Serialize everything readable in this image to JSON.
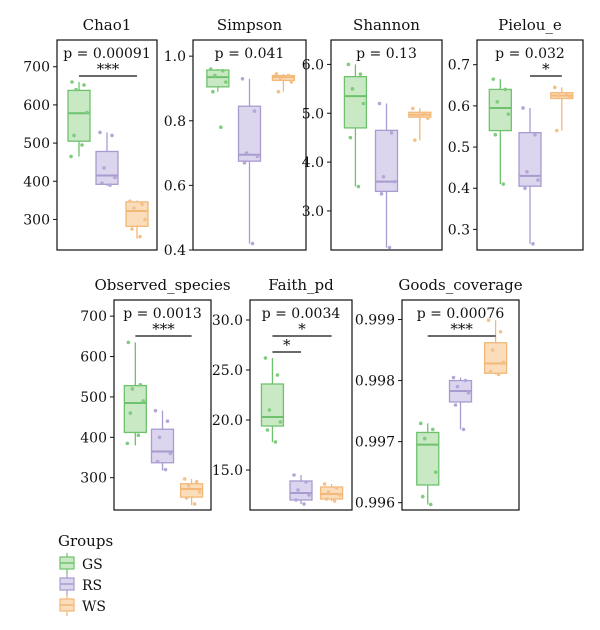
{
  "chart_data": [
    {
      "type": "box",
      "title": "Chao1",
      "pvalue": "p = 0.00091",
      "ylim": [
        220,
        770
      ],
      "yticks": [
        300,
        400,
        500,
        600,
        700
      ],
      "groups": [
        "GS",
        "RS",
        "WS"
      ],
      "boxes": [
        {
          "group": "GS",
          "min": 465,
          "q1": 505,
          "median": 578,
          "q3": 638,
          "max": 660,
          "points": [
            660,
            652,
            640,
            580,
            520,
            495,
            465
          ]
        },
        {
          "group": "RS",
          "min": 388,
          "q1": 392,
          "median": 415,
          "q3": 478,
          "max": 528,
          "points": [
            528,
            520,
            435,
            410,
            395,
            390
          ]
        },
        {
          "group": "WS",
          "min": 250,
          "q1": 282,
          "median": 322,
          "q3": 346,
          "max": 350,
          "points": [
            348,
            340,
            330,
            300,
            275,
            255
          ]
        }
      ],
      "sig": [
        {
          "from": 0,
          "to": 2,
          "label": "***"
        }
      ]
    },
    {
      "type": "box",
      "title": "Simpson",
      "pvalue": "p = 0.041",
      "ylim": [
        0.4,
        1.05
      ],
      "yticks": [
        0.4,
        0.6,
        0.8,
        1.0
      ],
      "groups": [
        "GS",
        "RS",
        "WS"
      ],
      "boxes": [
        {
          "group": "GS",
          "min": 0.89,
          "q1": 0.905,
          "median": 0.935,
          "q3": 0.957,
          "max": 0.96,
          "points": [
            0.96,
            0.955,
            0.94,
            0.92,
            0.89,
            0.78
          ]
        },
        {
          "group": "RS",
          "min": 0.42,
          "q1": 0.675,
          "median": 0.695,
          "q3": 0.845,
          "max": 0.93,
          "points": [
            0.93,
            0.83,
            0.7,
            0.69,
            0.67,
            0.42
          ]
        },
        {
          "group": "WS",
          "min": 0.89,
          "q1": 0.925,
          "median": 0.935,
          "q3": 0.94,
          "max": 0.945,
          "points": [
            0.945,
            0.94,
            0.93,
            0.92,
            0.89
          ]
        }
      ],
      "sig": []
    },
    {
      "type": "box",
      "title": "Shannon",
      "pvalue": "p = 0.13",
      "ylim": [
        2.2,
        6.5
      ],
      "yticks": [
        3,
        4,
        5,
        6
      ],
      "groups": [
        "GS",
        "RS",
        "WS"
      ],
      "boxes": [
        {
          "group": "GS",
          "min": 3.5,
          "q1": 4.7,
          "median": 5.35,
          "q3": 5.75,
          "max": 6.0,
          "points": [
            6.0,
            5.8,
            5.5,
            5.2,
            4.5,
            3.5
          ]
        },
        {
          "group": "RS",
          "min": 2.25,
          "q1": 3.4,
          "median": 3.6,
          "q3": 4.65,
          "max": 5.2,
          "points": [
            5.2,
            4.6,
            3.7,
            3.6,
            3.35,
            2.25
          ]
        },
        {
          "group": "WS",
          "min": 4.45,
          "q1": 4.92,
          "median": 4.97,
          "q3": 5.02,
          "max": 5.1,
          "points": [
            5.1,
            5.0,
            4.95,
            4.9,
            4.45
          ]
        }
      ],
      "sig": []
    },
    {
      "type": "box",
      "title": "Pielou_e",
      "pvalue": "p = 0.032",
      "ylim": [
        0.25,
        0.76
      ],
      "yticks": [
        0.3,
        0.4,
        0.5,
        0.6,
        0.7
      ],
      "groups": [
        "GS",
        "RS",
        "WS"
      ],
      "boxes": [
        {
          "group": "GS",
          "min": 0.41,
          "q1": 0.54,
          "median": 0.595,
          "q3": 0.64,
          "max": 0.665,
          "points": [
            0.665,
            0.64,
            0.61,
            0.58,
            0.53,
            0.41
          ]
        },
        {
          "group": "RS",
          "min": 0.265,
          "q1": 0.405,
          "median": 0.43,
          "q3": 0.535,
          "max": 0.595,
          "points": [
            0.595,
            0.53,
            0.44,
            0.42,
            0.4,
            0.265
          ]
        },
        {
          "group": "WS",
          "min": 0.54,
          "q1": 0.618,
          "median": 0.625,
          "q3": 0.632,
          "max": 0.645,
          "points": [
            0.645,
            0.63,
            0.625,
            0.62,
            0.54
          ]
        }
      ],
      "sig": [
        {
          "from": 1,
          "to": 2,
          "label": "*"
        }
      ]
    },
    {
      "type": "box",
      "title": "Observed_species",
      "pvalue": "p = 0.0013",
      "ylim": [
        220,
        740
      ],
      "yticks": [
        300,
        400,
        500,
        600,
        700
      ],
      "groups": [
        "GS",
        "RS",
        "WS"
      ],
      "boxes": [
        {
          "group": "GS",
          "min": 380,
          "q1": 412,
          "median": 485,
          "q3": 528,
          "max": 635,
          "points": [
            635,
            530,
            520,
            490,
            460,
            405,
            385
          ]
        },
        {
          "group": "RS",
          "min": 318,
          "q1": 337,
          "median": 365,
          "q3": 420,
          "max": 466,
          "points": [
            466,
            440,
            400,
            360,
            340,
            320
          ]
        },
        {
          "group": "WS",
          "min": 232,
          "q1": 252,
          "median": 272,
          "q3": 285,
          "max": 297,
          "points": [
            297,
            290,
            280,
            265,
            250,
            235
          ]
        }
      ],
      "sig": [
        {
          "from": 0,
          "to": 2,
          "label": "***"
        }
      ]
    },
    {
      "type": "box",
      "title": "Faith_pd",
      "pvalue": "p = 0.0034",
      "ylim": [
        11,
        32
      ],
      "yticks": [
        15,
        20,
        25,
        30
      ],
      "groups": [
        "GS",
        "RS",
        "WS"
      ],
      "boxes": [
        {
          "group": "GS",
          "min": 17.8,
          "q1": 19.4,
          "median": 20.3,
          "q3": 23.6,
          "max": 26.2,
          "points": [
            26.2,
            24.5,
            21.0,
            19.8,
            19.0,
            17.8
          ]
        },
        {
          "group": "RS",
          "min": 11.6,
          "q1": 12.0,
          "median": 12.7,
          "q3": 13.9,
          "max": 14.5,
          "points": [
            14.5,
            13.8,
            13.0,
            12.5,
            12.0,
            11.6
          ]
        },
        {
          "group": "WS",
          "min": 11.9,
          "q1": 12.1,
          "median": 12.6,
          "q3": 13.3,
          "max": 13.6,
          "points": [
            13.6,
            13.2,
            12.8,
            12.5,
            12.1,
            11.9
          ]
        }
      ],
      "sig": [
        {
          "from": 0,
          "to": 1,
          "label": "*"
        },
        {
          "from": 0,
          "to": 2,
          "label": "*"
        }
      ]
    },
    {
      "type": "box",
      "title": "Goods_coverage",
      "pvalue": "p = 0.00076",
      "ylim": [
        0.99588,
        0.99932
      ],
      "yticks": [
        0.996,
        0.997,
        0.998,
        0.999
      ],
      "groups": [
        "GS",
        "RS",
        "WS"
      ],
      "boxes": [
        {
          "group": "GS",
          "min": 0.99597,
          "q1": 0.99629,
          "median": 0.99695,
          "q3": 0.99715,
          "max": 0.9973,
          "points": [
            0.9973,
            0.9972,
            0.99705,
            0.9965,
            0.9961,
            0.99597
          ]
        },
        {
          "group": "RS",
          "min": 0.9972,
          "q1": 0.99765,
          "median": 0.99783,
          "q3": 0.998,
          "max": 0.99805,
          "points": [
            0.99805,
            0.998,
            0.9979,
            0.9978,
            0.9976,
            0.9972
          ]
        },
        {
          "group": "WS",
          "min": 0.9981,
          "q1": 0.99812,
          "median": 0.99828,
          "q3": 0.99862,
          "max": 0.99899,
          "points": [
            0.99899,
            0.9988,
            0.9985,
            0.9983,
            0.99815,
            0.9981
          ]
        }
      ],
      "sig": [
        {
          "from": 0,
          "to": 2,
          "label": "***"
        }
      ]
    }
  ],
  "legend": {
    "title": "Groups",
    "items": [
      {
        "label": "GS",
        "stroke": "#6ec26e",
        "fill": "#c9e8c4"
      },
      {
        "label": "RS",
        "stroke": "#a99bd0",
        "fill": "#dcd5ee"
      },
      {
        "label": "WS",
        "stroke": "#f2b878",
        "fill": "#fbddbc"
      }
    ]
  },
  "colors": {
    "GS": {
      "stroke": "#6ec26e",
      "fill": "#c9e8c4",
      "point": "#7fcc7f"
    },
    "RS": {
      "stroke": "#a99bd0",
      "fill": "#dcd5ee",
      "point": "#b3a7d8"
    },
    "WS": {
      "stroke": "#f2b878",
      "fill": "#fbddbc",
      "point": "#f5c08a"
    }
  }
}
